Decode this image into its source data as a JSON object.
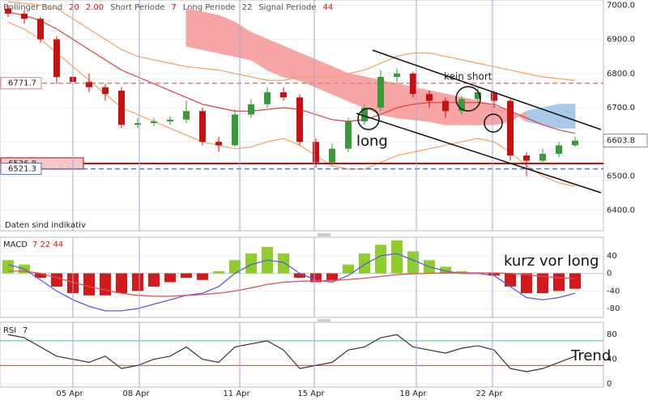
{
  "chart_data": [
    {
      "type": "candlestick",
      "indicator_labels": [
        "Bollinger Band",
        "20",
        "2.00",
        "Short Periode",
        "7",
        "Long Periode",
        "22",
        "Signal Periode",
        "44"
      ],
      "note": "Daten sind indikativ",
      "annotations": [
        "long",
        "kein short"
      ],
      "x": [
        0,
        1,
        2,
        3,
        4,
        5,
        6,
        7,
        8,
        9,
        10,
        11,
        12,
        13,
        14,
        15,
        16,
        17,
        18,
        19,
        20,
        21,
        22,
        23,
        24,
        25,
        26,
        27,
        28,
        29,
        30,
        31,
        32,
        33,
        34,
        35
      ],
      "open": [
        6990,
        6975,
        6960,
        6900,
        6790,
        6775,
        6760,
        6750,
        6650,
        6655,
        6660,
        6665,
        6690,
        6600,
        6590,
        6680,
        6710,
        6745,
        6730,
        6600,
        6540,
        6580,
        6660,
        6700,
        6790,
        6800,
        6740,
        6720,
        6690,
        6725,
        6745,
        6720,
        6560,
        6545,
        6565,
        6590
      ],
      "high": [
        7000,
        6985,
        6965,
        6910,
        6810,
        6800,
        6770,
        6760,
        6670,
        6670,
        6675,
        6720,
        6700,
        6615,
        6695,
        6725,
        6760,
        6760,
        6740,
        6610,
        6595,
        6670,
        6710,
        6810,
        6815,
        6805,
        6750,
        6730,
        6735,
        6760,
        6750,
        6725,
        6570,
        6580,
        6600,
        6615
      ],
      "low": [
        6965,
        6945,
        6890,
        6770,
        6765,
        6745,
        6720,
        6640,
        6640,
        6645,
        6650,
        6655,
        6590,
        6570,
        6585,
        6670,
        6700,
        6720,
        6590,
        6525,
        6530,
        6570,
        6650,
        6690,
        6770,
        6730,
        6700,
        6670,
        6680,
        6715,
        6700,
        6545,
        6500,
        6535,
        6555,
        6585
      ],
      "close": [
        6975,
        6960,
        6900,
        6790,
        6775,
        6760,
        6740,
        6650,
        6655,
        6660,
        6665,
        6690,
        6600,
        6590,
        6680,
        6710,
        6745,
        6730,
        6600,
        6540,
        6580,
        6660,
        6700,
        6790,
        6800,
        6740,
        6720,
        6690,
        6725,
        6745,
        6720,
        6560,
        6545,
        6565,
        6590,
        6603.8
      ],
      "up_color": "#3a9a3a",
      "down_color": "#c81010",
      "bands": [
        {
          "color": "#f0a060",
          "values": [
            7010,
            7005,
            7000,
            6990,
            6960,
            6930,
            6900,
            6870,
            6850,
            6840,
            6830,
            6820,
            6815,
            6810,
            6800,
            6790,
            6780,
            6780,
            6790,
            6790,
            6790,
            6800,
            6810,
            6830,
            6850,
            6860,
            6860,
            6850,
            6840,
            6830,
            6820,
            6810,
            6800,
            6790,
            6785,
            6780
          ]
        },
        {
          "color": "#e04040",
          "values": [
            6980,
            6970,
            6955,
            6930,
            6900,
            6870,
            6840,
            6810,
            6790,
            6770,
            6750,
            6730,
            6710,
            6700,
            6690,
            6690,
            6695,
            6700,
            6695,
            6680,
            6665,
            6660,
            6665,
            6680,
            6700,
            6710,
            6715,
            6715,
            6715,
            6715,
            6710,
            6690,
            6670,
            6650,
            6635,
            6625
          ]
        },
        {
          "color": "#f0a060",
          "values": [
            6950,
            6930,
            6900,
            6860,
            6820,
            6780,
            6740,
            6700,
            6680,
            6660,
            6640,
            6620,
            6600,
            6590,
            6580,
            6585,
            6600,
            6610,
            6590,
            6560,
            6530,
            6520,
            6520,
            6540,
            6560,
            6570,
            6580,
            6590,
            6600,
            6610,
            6600,
            6570,
            6530,
            6500,
            6480,
            6470
          ]
        }
      ],
      "cloud": {
        "up_color": "#f7a4a4",
        "down_color": "#a9c9e8",
        "a": [
          null,
          null,
          null,
          null,
          null,
          null,
          null,
          null,
          null,
          null,
          null,
          6990,
          6980,
          6970,
          6950,
          6920,
          6900,
          6880,
          6860,
          6840,
          6820,
          6800,
          6790,
          6780,
          6770,
          6760,
          6750,
          6740,
          6730,
          6720,
          6705,
          6690,
          6660,
          6650,
          6640,
          6640
        ],
        "b": [
          null,
          null,
          null,
          null,
          null,
          null,
          null,
          null,
          null,
          null,
          null,
          6880,
          6870,
          6860,
          6850,
          6840,
          6810,
          6790,
          6780,
          6760,
          6740,
          6720,
          6700,
          6680,
          6670,
          6665,
          6660,
          6650,
          6650,
          6650,
          6650,
          6660,
          6690,
          6700,
          6710,
          6710
        ]
      },
      "levels": [
        {
          "value": 6771.7,
          "color": "#e08080",
          "fill": "#ffffff",
          "dashed": true
        },
        {
          "value": 6536.8,
          "color": "#a01010",
          "fill": "#f8c8c8",
          "dashed": false
        },
        {
          "value": 6521.3,
          "color": "#4a7ac8",
          "fill": "#ffffff",
          "dashed": true
        }
      ],
      "last": 6603.8,
      "xlim": [
        -0.5,
        36.75
      ],
      "ylim": [
        6340,
        7015
      ],
      "yticks": [
        {
          "value": 6400,
          "label": "6400.0"
        },
        {
          "value": 6500,
          "label": "6500.0"
        },
        {
          "value": 6600,
          "label": "6600.0"
        },
        {
          "value": 6700,
          "label": "6700.0"
        },
        {
          "value": 6800,
          "label": "6800.0"
        },
        {
          "value": 6900,
          "label": "6900.0"
        },
        {
          "value": 7000,
          "label": "7000.0"
        }
      ]
    },
    {
      "type": "bar",
      "title": "MACD",
      "params": "7   22 44",
      "annotation": "kurz vor long",
      "x": [
        0,
        1,
        2,
        3,
        4,
        5,
        6,
        7,
        8,
        9,
        10,
        11,
        12,
        13,
        14,
        15,
        16,
        17,
        18,
        19,
        20,
        21,
        22,
        23,
        24,
        25,
        26,
        27,
        28,
        29,
        30,
        31,
        32,
        33,
        34,
        35
      ],
      "values": [
        30,
        20,
        -10,
        -30,
        -45,
        -50,
        -50,
        -45,
        -40,
        -30,
        -20,
        -10,
        -15,
        5,
        30,
        45,
        60,
        45,
        -10,
        -20,
        -15,
        20,
        45,
        65,
        75,
        50,
        30,
        15,
        5,
        0,
        -5,
        -30,
        -45,
        -45,
        -40,
        -35
      ],
      "pos_color": "#8fce2a",
      "neg_color": "#d21a1a",
      "series": [
        {
          "color": "#5a5ae0",
          "values": [
            20,
            10,
            -15,
            -40,
            -60,
            -75,
            -85,
            -85,
            -80,
            -70,
            -60,
            -50,
            -45,
            -30,
            0,
            20,
            30,
            25,
            0,
            -15,
            -20,
            -5,
            20,
            40,
            45,
            30,
            15,
            5,
            0,
            0,
            -5,
            -30,
            -55,
            -60,
            -55,
            -45
          ]
        },
        {
          "color": "#e05050",
          "values": [
            5,
            5,
            0,
            -10,
            -20,
            -30,
            -38,
            -45,
            -50,
            -52,
            -52,
            -50,
            -48,
            -45,
            -40,
            -33,
            -25,
            -20,
            -18,
            -17,
            -16,
            -14,
            -11,
            -7,
            -3,
            -1,
            0,
            1,
            1,
            1,
            1,
            0,
            -3,
            -7,
            -10,
            -12
          ]
        }
      ],
      "xlim": [
        -0.5,
        36.75
      ],
      "ylim": [
        -100,
        82
      ],
      "yticks": [
        -80,
        -40,
        0,
        40
      ]
    },
    {
      "type": "line",
      "title": "RSI",
      "params": "7",
      "annotation": "Trend",
      "x": [
        0,
        1,
        2,
        3,
        4,
        5,
        6,
        7,
        8,
        9,
        10,
        11,
        12,
        13,
        14,
        15,
        16,
        17,
        18,
        19,
        20,
        21,
        22,
        23,
        24,
        25,
        26,
        27,
        28,
        29,
        30,
        31,
        32,
        33,
        34,
        35
      ],
      "values": [
        80,
        75,
        60,
        45,
        40,
        35,
        45,
        25,
        30,
        40,
        45,
        60,
        40,
        35,
        60,
        65,
        70,
        55,
        25,
        30,
        35,
        55,
        60,
        75,
        80,
        60,
        55,
        50,
        58,
        62,
        55,
        25,
        20,
        25,
        35,
        45
      ],
      "color": "#333333",
      "levels": [
        {
          "value": 70,
          "color": "#5fb3b3"
        },
        {
          "value": 30,
          "color": "#d04040"
        }
      ],
      "xlim": [
        -0.5,
        36.75
      ],
      "ylim": [
        -5,
        100
      ],
      "yticks": [
        0,
        40,
        80
      ],
      "xticks": [
        {
          "value": 4,
          "label": "05 Apr"
        },
        {
          "value": 8.1,
          "label": "08 Apr"
        },
        {
          "value": 14.3,
          "label": "11 Apr"
        },
        {
          "value": 18.9,
          "label": "15 Apr"
        },
        {
          "value": 25.2,
          "label": "18 Apr"
        },
        {
          "value": 29.9,
          "label": "22 Apr"
        }
      ],
      "xgrid_color": "#9aa8d8"
    }
  ]
}
